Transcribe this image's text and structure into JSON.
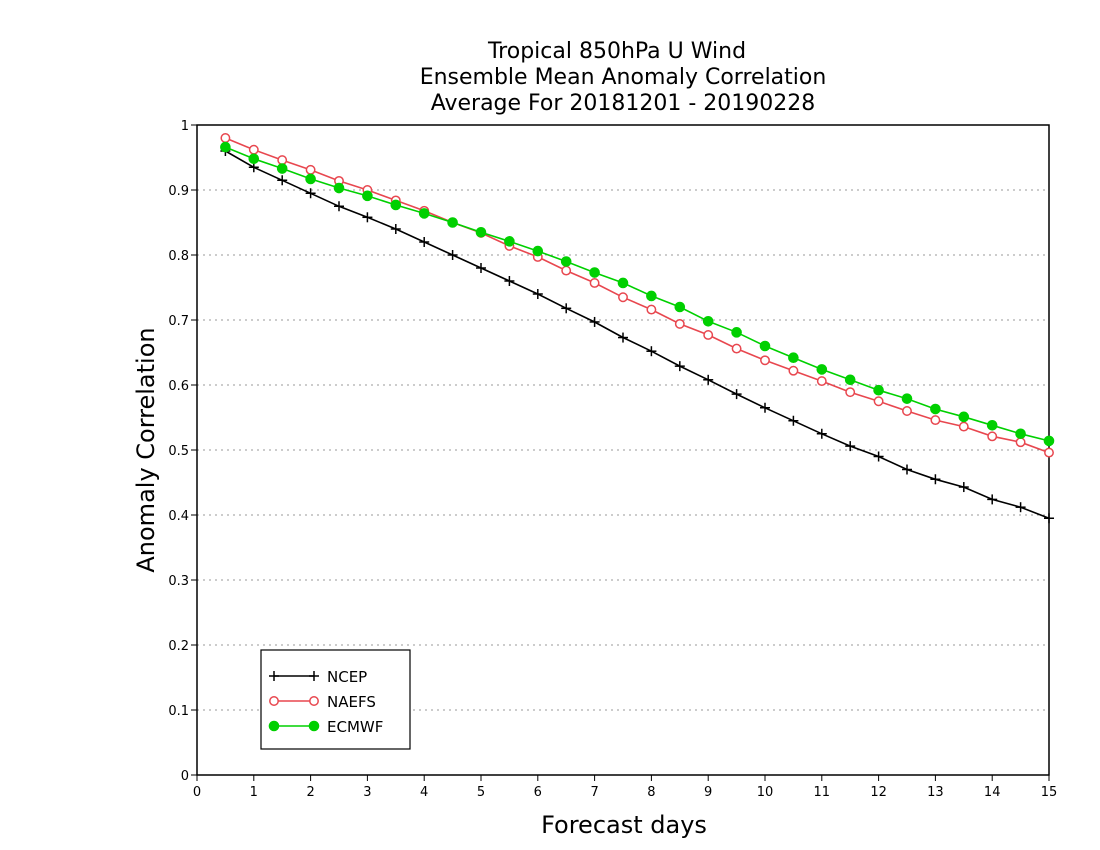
{
  "chart_data": {
    "type": "line",
    "title": [
      "Tropical 850hPa U Wind",
      "Ensemble Mean Anomaly Correlation",
      "Average For 20181201 - 20190228"
    ],
    "xlabel": "Forecast days",
    "ylabel": "Anomaly Correlation",
    "xlim": [
      0,
      15
    ],
    "ylim": [
      0,
      1
    ],
    "x_ticks": [
      "0",
      "1",
      "2",
      "3",
      "4",
      "5",
      "6",
      "7",
      "8",
      "9",
      "10",
      "11",
      "12",
      "13",
      "14",
      "15"
    ],
    "y_ticks": [
      "0",
      "0.1",
      "0.2",
      "0.3",
      "0.4",
      "0.5",
      "0.6",
      "0.7",
      "0.8",
      "0.9",
      "1"
    ],
    "grid": "horizontal dotted",
    "legend_position": "bottom-left",
    "x": [
      0.5,
      1,
      1.5,
      2,
      2.5,
      3,
      3.5,
      4,
      4.5,
      5,
      5.5,
      6,
      6.5,
      7,
      7.5,
      8,
      8.5,
      9,
      9.5,
      10,
      10.5,
      11,
      11.5,
      12,
      12.5,
      13,
      13.5,
      14,
      14.5,
      15
    ],
    "series": [
      {
        "name": "NCEP",
        "color": "#000000",
        "marker": "plus",
        "values": [
          0.96,
          0.935,
          0.915,
          0.895,
          0.875,
          0.858,
          0.84,
          0.82,
          0.8,
          0.78,
          0.76,
          0.74,
          0.718,
          0.697,
          0.673,
          0.652,
          0.629,
          0.608,
          0.586,
          0.565,
          0.545,
          0.525,
          0.506,
          0.49,
          0.47,
          0.455,
          0.443,
          0.424,
          0.412,
          0.395
        ]
      },
      {
        "name": "NAEFS",
        "color": "#e8474f",
        "marker": "open-circle",
        "values": [
          0.98,
          0.962,
          0.946,
          0.931,
          0.914,
          0.9,
          0.884,
          0.868,
          0.85,
          0.834,
          0.814,
          0.797,
          0.776,
          0.757,
          0.735,
          0.716,
          0.694,
          0.677,
          0.656,
          0.638,
          0.622,
          0.606,
          0.589,
          0.575,
          0.56,
          0.546,
          0.536,
          0.521,
          0.512,
          0.496
        ]
      },
      {
        "name": "ECMWF",
        "color": "#00d000",
        "marker": "filled-circle",
        "values": [
          0.966,
          0.948,
          0.933,
          0.917,
          0.903,
          0.891,
          0.877,
          0.864,
          0.85,
          0.835,
          0.821,
          0.806,
          0.79,
          0.773,
          0.757,
          0.737,
          0.72,
          0.698,
          0.681,
          0.66,
          0.642,
          0.624,
          0.608,
          0.592,
          0.579,
          0.563,
          0.551,
          0.538,
          0.525,
          0.514
        ]
      }
    ]
  }
}
